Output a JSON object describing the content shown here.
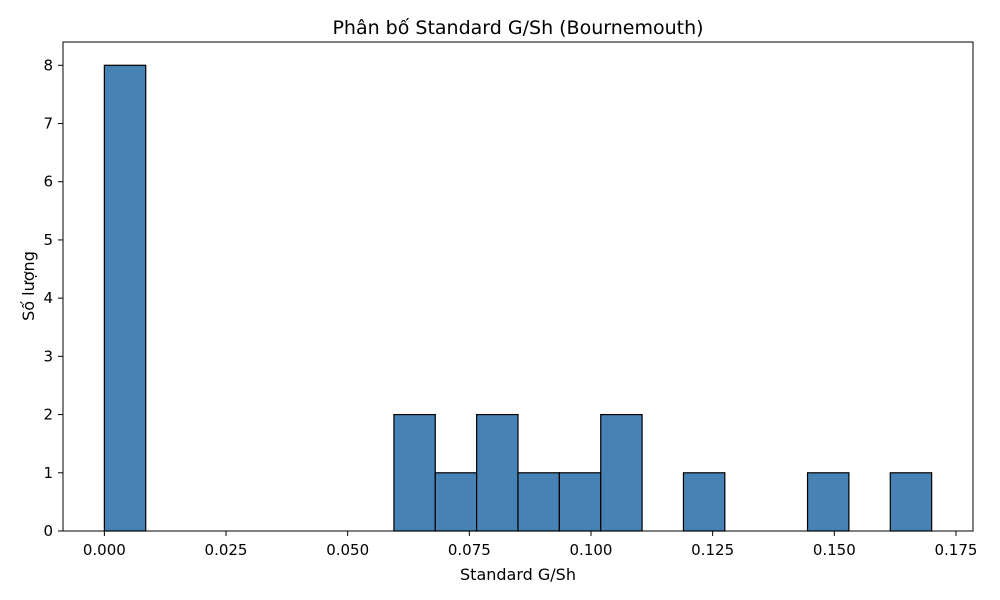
{
  "chart_data": {
    "type": "bar",
    "title": "Phân bố Standard G/Sh (Bournemouth)",
    "xlabel": "Standard G/Sh",
    "ylabel": "Số lượng",
    "xlim": [
      -0.0085,
      0.1785
    ],
    "ylim": [
      0,
      8.4
    ],
    "x_ticks": [
      "0.000",
      "0.025",
      "0.050",
      "0.075",
      "0.100",
      "0.125",
      "0.150",
      "0.175"
    ],
    "x_tick_values": [
      0.0,
      0.025,
      0.05,
      0.075,
      0.1,
      0.125,
      0.15,
      0.175
    ],
    "y_ticks": [
      "0",
      "1",
      "2",
      "3",
      "4",
      "5",
      "6",
      "7",
      "8"
    ],
    "y_tick_values": [
      0,
      1,
      2,
      3,
      4,
      5,
      6,
      7,
      8
    ],
    "bins": [
      {
        "x0": 0.0,
        "x1": 0.0085,
        "count": 8
      },
      {
        "x0": 0.0085,
        "x1": 0.017,
        "count": 0
      },
      {
        "x0": 0.017,
        "x1": 0.0255,
        "count": 0
      },
      {
        "x0": 0.0255,
        "x1": 0.034,
        "count": 0
      },
      {
        "x0": 0.034,
        "x1": 0.0425,
        "count": 0
      },
      {
        "x0": 0.0425,
        "x1": 0.051,
        "count": 0
      },
      {
        "x0": 0.051,
        "x1": 0.0595,
        "count": 0
      },
      {
        "x0": 0.0595,
        "x1": 0.068,
        "count": 2
      },
      {
        "x0": 0.068,
        "x1": 0.0765,
        "count": 1
      },
      {
        "x0": 0.0765,
        "x1": 0.085,
        "count": 2
      },
      {
        "x0": 0.085,
        "x1": 0.0935,
        "count": 1
      },
      {
        "x0": 0.0935,
        "x1": 0.102,
        "count": 1
      },
      {
        "x0": 0.102,
        "x1": 0.1105,
        "count": 2
      },
      {
        "x0": 0.1105,
        "x1": 0.119,
        "count": 0
      },
      {
        "x0": 0.119,
        "x1": 0.1275,
        "count": 1
      },
      {
        "x0": 0.1275,
        "x1": 0.136,
        "count": 0
      },
      {
        "x0": 0.136,
        "x1": 0.1445,
        "count": 0
      },
      {
        "x0": 0.1445,
        "x1": 0.153,
        "count": 1
      },
      {
        "x0": 0.153,
        "x1": 0.1615,
        "count": 0
      },
      {
        "x0": 0.1615,
        "x1": 0.17,
        "count": 1
      }
    ],
    "bar_color": "#4682b4",
    "edge_color": "#000000",
    "grid": false,
    "legend": "none"
  }
}
